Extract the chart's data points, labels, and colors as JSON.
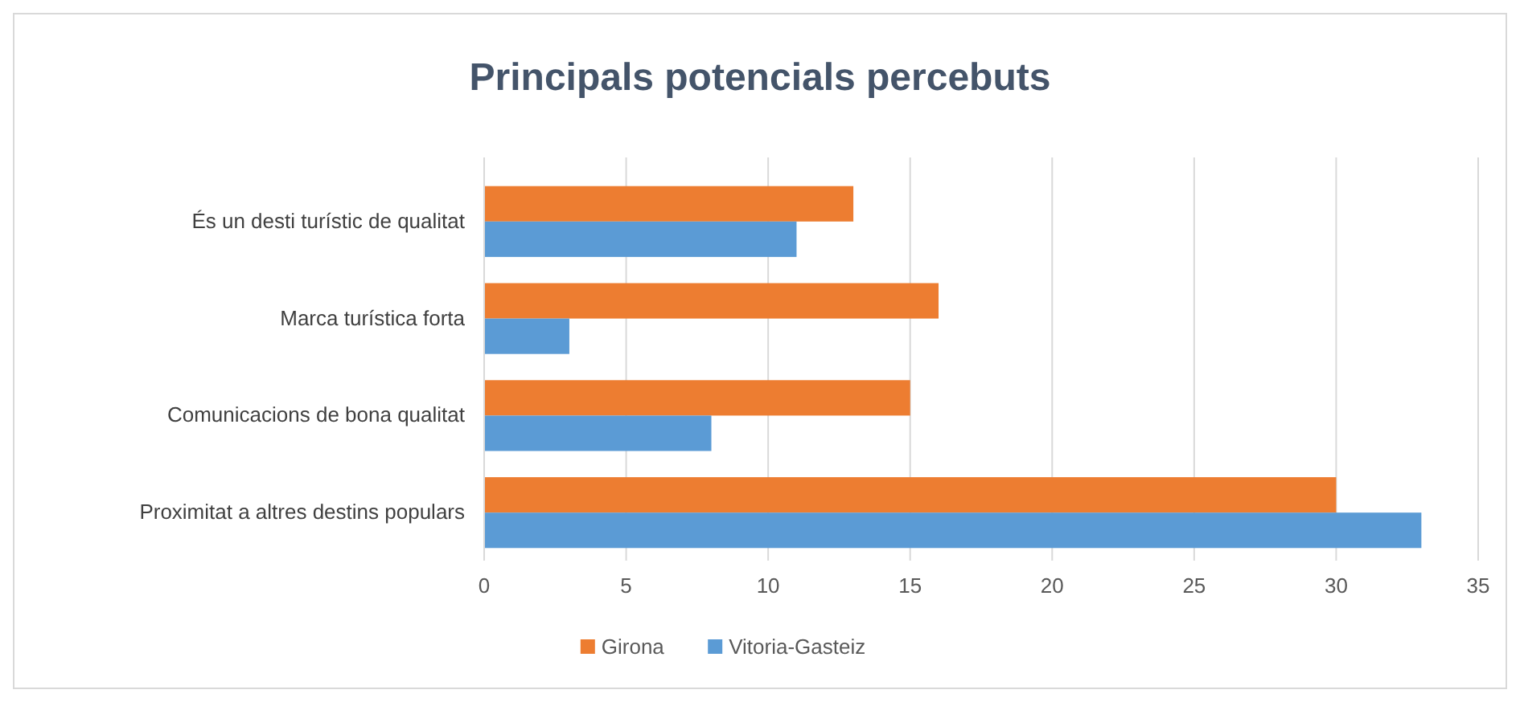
{
  "chart_data": {
    "type": "bar",
    "orientation": "horizontal",
    "title": "Principals potencials percebuts",
    "categories": [
      "És un desti turístic de qualitat",
      "Marca turística forta",
      "Comunicacions de bona qualitat",
      "Proximitat a altres destins populars"
    ],
    "series": [
      {
        "name": "Girona",
        "color": "#ed7d31",
        "values": [
          13,
          16,
          15,
          30
        ]
      },
      {
        "name": "Vitoria-Gasteiz",
        "color": "#5b9bd5",
        "values": [
          11,
          3,
          8,
          33
        ]
      }
    ],
    "xlim": [
      0,
      35
    ],
    "xticks": [
      0,
      5,
      10,
      15,
      20,
      25,
      30,
      35
    ],
    "grid": "x",
    "legend": "bottom"
  }
}
